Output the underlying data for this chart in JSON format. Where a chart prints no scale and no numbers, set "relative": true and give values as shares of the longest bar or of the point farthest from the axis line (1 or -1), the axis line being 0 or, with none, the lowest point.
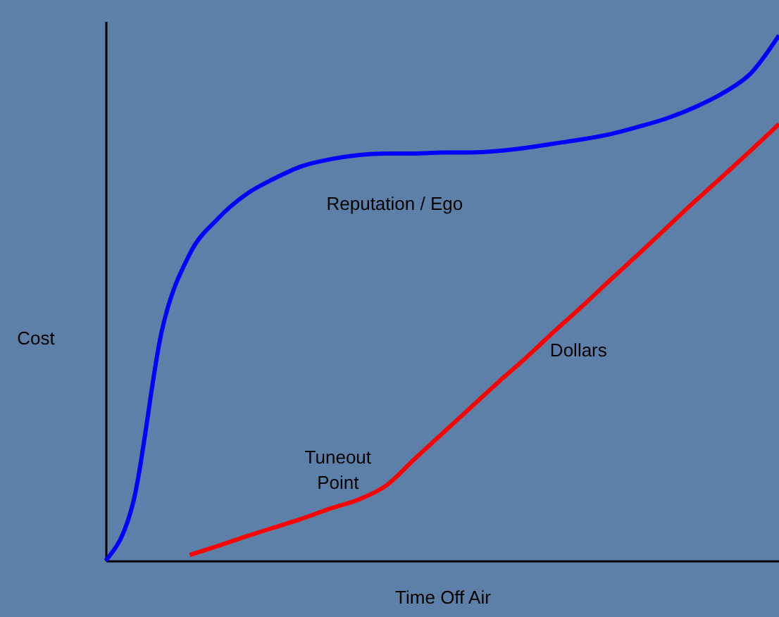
{
  "chart_data": {
    "type": "line",
    "relative": true,
    "xlabel": "Time Off Air",
    "ylabel": "Cost",
    "grid": false,
    "marker": "none",
    "line_style": "solid",
    "categories": [
      null,
      null,
      null,
      null,
      null,
      null,
      null,
      null,
      null,
      null,
      null,
      null,
      null,
      null,
      null,
      null,
      null,
      null,
      null,
      null,
      null,
      null,
      null,
      null,
      null
    ],
    "series": [
      {
        "name": "Reputation / Ego",
        "color": "#0000ff",
        "values": [
          0,
          0.115,
          0.437,
          0.584,
          0.651,
          0.697,
          0.727,
          0.751,
          0.764,
          0.772,
          0.775,
          0.775,
          0.777,
          0.777,
          0.78,
          0.786,
          0.794,
          0.802,
          0.812,
          0.826,
          0.842,
          0.863,
          0.89,
          0.928,
          1
        ]
      },
      {
        "name": "Dollars",
        "color": "#ff0000",
        "values": [
          null,
          null,
          null,
          0.011,
          0.028,
          0.046,
          0.063,
          0.08,
          0.099,
          0.116,
          0.143,
          0.193,
          0.242,
          0.291,
          0.34,
          0.387,
          0.437,
          0.485,
          0.535,
          0.584,
          0.634,
          0.684,
          0.732,
          0.781,
          0.831
        ]
      }
    ],
    "annotations": [
      "Tuneout Point"
    ]
  }
}
